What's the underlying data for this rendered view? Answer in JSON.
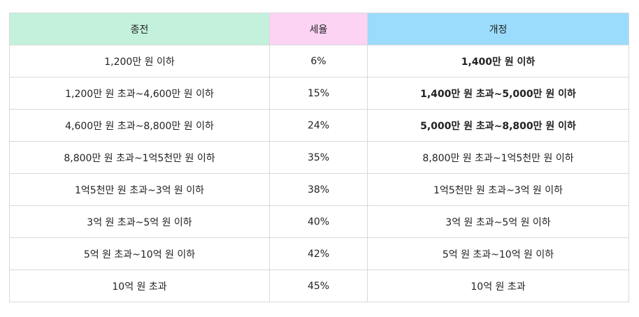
{
  "colors": {
    "header_old": "#c3f1dc",
    "header_rate": "#fdd3f4",
    "header_new": "#9bdcfc",
    "border": "#d9d9d9"
  },
  "table": {
    "headers": [
      "종전",
      "세율",
      "개정"
    ],
    "rows": [
      {
        "old": "1,200만 원 이하",
        "rate": "6%",
        "new": "1,400만 원 이하",
        "changed": true
      },
      {
        "old": "1,200만 원 초과~4,600만 원 이하",
        "rate": "15%",
        "new": "1,400만 원 초과~5,000만 원 이하",
        "changed": true
      },
      {
        "old": "4,600만 원 초과~8,800만 원 이하",
        "rate": "24%",
        "new": "5,000만 원 초과~8,800만 원 이하",
        "changed": true
      },
      {
        "old": "8,800만 원 초과~1억5천만 원 이하",
        "rate": "35%",
        "new": "8,800만 원 초과~1억5천만 원 이하",
        "changed": false
      },
      {
        "old": "1억5천만 원 초과~3억 원 이하",
        "rate": "38%",
        "new": "1억5천만 원 초과~3억 원 이하",
        "changed": false
      },
      {
        "old": "3억 원 초과~5억 원 이하",
        "rate": "40%",
        "new": "3억 원 초과~5억 원 이하",
        "changed": false
      },
      {
        "old": "5억 원 초과~10억 원 이하",
        "rate": "42%",
        "new": "5억 원 초과~10억 원 이하",
        "changed": false
      },
      {
        "old": "10억 원 초과",
        "rate": "45%",
        "new": "10억 원 초과",
        "changed": false
      }
    ]
  }
}
